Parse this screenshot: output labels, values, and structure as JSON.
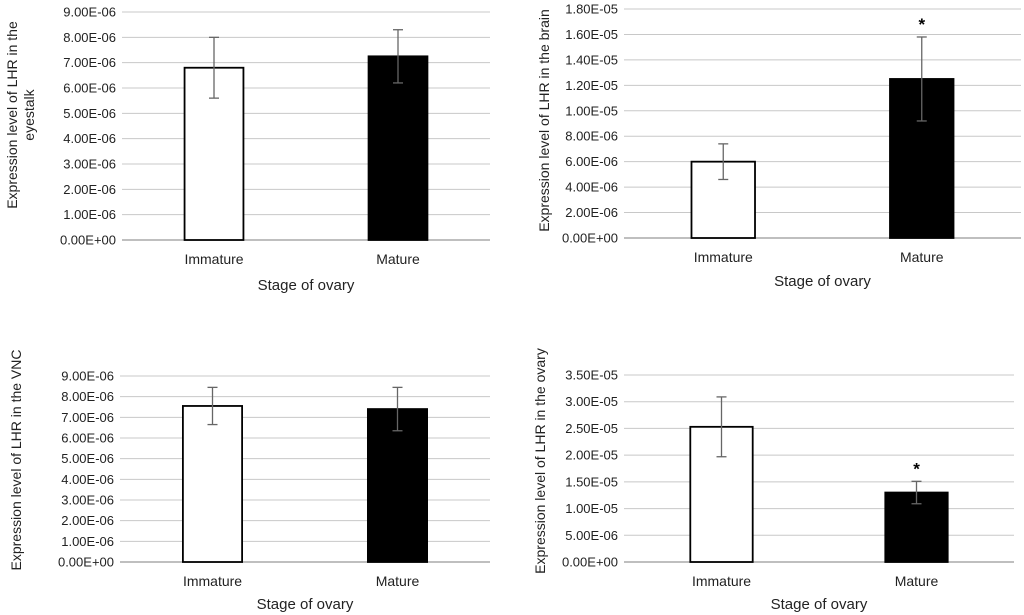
{
  "chart_data": [
    {
      "type": "bar",
      "categories": [
        "Immature",
        "Mature"
      ],
      "values": [
        6.8e-06,
        7.25e-06
      ],
      "errors": [
        1.2e-06,
        1.05e-06
      ],
      "significance": [
        "",
        ""
      ],
      "xlabel": "Stage of ovary",
      "ylabel": "Expression level of LHR in the eyestalk",
      "ylim": [
        0,
        9e-06
      ],
      "ytick_labels": [
        "0.00E+00",
        "1.00E-06",
        "2.00E-06",
        "3.00E-06",
        "4.00E-06",
        "5.00E-06",
        "6.00E-06",
        "7.00E-06",
        "8.00E-06",
        "9.00E-06"
      ],
      "bar_colors": [
        "#ffffff",
        "#000000"
      ],
      "grid": true
    },
    {
      "type": "bar",
      "categories": [
        "Immature",
        "Mature"
      ],
      "values": [
        6e-06,
        1.25e-05
      ],
      "errors": [
        1.4e-06,
        3.3e-06
      ],
      "significance": [
        "",
        "*"
      ],
      "xlabel": "Stage of ovary",
      "ylabel": "Expression level of LHR in the brain",
      "ylim": [
        0,
        1.8e-05
      ],
      "ytick_labels": [
        "0.00E+00",
        "2.00E-06",
        "4.00E-06",
        "6.00E-06",
        "8.00E-06",
        "1.00E-05",
        "1.20E-05",
        "1.40E-05",
        "1.60E-05",
        "1.80E-05"
      ],
      "bar_colors": [
        "#ffffff",
        "#000000"
      ],
      "grid": true
    },
    {
      "type": "bar",
      "categories": [
        "Immature",
        "Mature"
      ],
      "values": [
        7.55e-06,
        7.4e-06
      ],
      "errors": [
        9e-07,
        1.05e-06
      ],
      "significance": [
        "",
        ""
      ],
      "xlabel": "Stage of ovary",
      "ylabel": "Expression level of LHR in the VNC",
      "ylim": [
        0,
        9e-06
      ],
      "ytick_labels": [
        "0.00E+00",
        "1.00E-06",
        "2.00E-06",
        "3.00E-06",
        "4.00E-06",
        "5.00E-06",
        "6.00E-06",
        "7.00E-06",
        "8.00E-06",
        "9.00E-06"
      ],
      "bar_colors": [
        "#ffffff",
        "#000000"
      ],
      "grid": true
    },
    {
      "type": "bar",
      "categories": [
        "Immature",
        "Mature"
      ],
      "values": [
        2.53e-05,
        1.3e-05
      ],
      "errors": [
        5.6e-06,
        2.1e-06
      ],
      "significance": [
        "",
        "*"
      ],
      "xlabel": "Stage of ovary",
      "ylabel": "Expression level of LHR in the ovary",
      "ylim": [
        0,
        3.5e-05
      ],
      "ytick_labels": [
        "0.00E+00",
        "5.00E-06",
        "1.00E-05",
        "1.50E-05",
        "2.00E-05",
        "2.50E-05",
        "3.00E-05",
        "3.50E-05"
      ],
      "bar_colors": [
        "#ffffff",
        "#000000"
      ],
      "grid": true
    }
  ]
}
